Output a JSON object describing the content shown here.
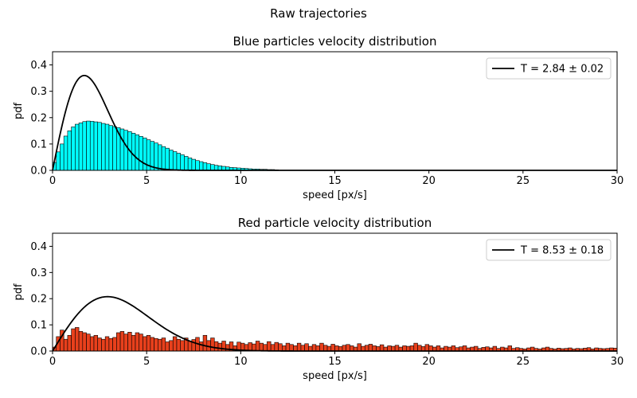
{
  "figure": {
    "suptitle": "Raw trajectories"
  },
  "chart_data": [
    {
      "type": "bar",
      "title": "Blue particles velocity distribution",
      "xlabel": "speed [px/s]",
      "ylabel": "pdf",
      "xlim": [
        0,
        30
      ],
      "ylim": [
        0,
        0.45
      ],
      "xticks": [
        "0",
        "5",
        "10",
        "15",
        "20",
        "25",
        "30"
      ],
      "yticks": [
        "0.0",
        "0.1",
        "0.2",
        "0.3",
        "0.4"
      ],
      "bin_width": 0.2,
      "bar_color": "#00ffff",
      "edge_color": "#000000",
      "values": [
        0.03,
        0.07,
        0.1,
        0.13,
        0.15,
        0.165,
        0.175,
        0.18,
        0.185,
        0.187,
        0.186,
        0.184,
        0.182,
        0.178,
        0.175,
        0.17,
        0.166,
        0.162,
        0.157,
        0.152,
        0.147,
        0.141,
        0.135,
        0.129,
        0.123,
        0.116,
        0.11,
        0.104,
        0.097,
        0.09,
        0.084,
        0.077,
        0.071,
        0.065,
        0.059,
        0.053,
        0.047,
        0.042,
        0.037,
        0.033,
        0.029,
        0.025,
        0.022,
        0.019,
        0.017,
        0.015,
        0.013,
        0.011,
        0.01,
        0.009,
        0.008,
        0.007,
        0.006,
        0.005,
        0.005,
        0.004,
        0.004,
        0.003,
        0.003,
        0.002
      ],
      "fit_curve": {
        "type": "maxwell-2d",
        "T": 2.84,
        "color": "#000000"
      },
      "legend": {
        "label": "T = 2.84 ± 0.02",
        "position": "top-right"
      },
      "grid": false
    },
    {
      "type": "bar",
      "title": "Red particle velocity distribution",
      "xlabel": "speed [px/s]",
      "ylabel": "pdf",
      "xlim": [
        0,
        30
      ],
      "ylim": [
        0,
        0.45
      ],
      "xticks": [
        "0",
        "5",
        "10",
        "15",
        "20",
        "25",
        "30"
      ],
      "yticks": [
        "0.0",
        "0.1",
        "0.2",
        "0.3",
        "0.4"
      ],
      "bin_width": 0.2,
      "bar_color": "#e8401c",
      "edge_color": "#000000",
      "values": [
        0.015,
        0.055,
        0.08,
        0.045,
        0.06,
        0.085,
        0.09,
        0.075,
        0.07,
        0.065,
        0.055,
        0.06,
        0.05,
        0.045,
        0.055,
        0.048,
        0.052,
        0.07,
        0.075,
        0.065,
        0.072,
        0.06,
        0.07,
        0.065,
        0.055,
        0.06,
        0.052,
        0.048,
        0.045,
        0.05,
        0.035,
        0.04,
        0.055,
        0.045,
        0.04,
        0.05,
        0.038,
        0.044,
        0.052,
        0.035,
        0.06,
        0.04,
        0.05,
        0.036,
        0.03,
        0.038,
        0.025,
        0.035,
        0.02,
        0.034,
        0.03,
        0.025,
        0.032,
        0.027,
        0.038,
        0.03,
        0.025,
        0.036,
        0.025,
        0.033,
        0.028,
        0.02,
        0.03,
        0.025,
        0.02,
        0.03,
        0.022,
        0.028,
        0.018,
        0.025,
        0.02,
        0.03,
        0.022,
        0.018,
        0.026,
        0.02,
        0.017,
        0.022,
        0.025,
        0.02,
        0.015,
        0.028,
        0.018,
        0.022,
        0.026,
        0.02,
        0.017,
        0.024,
        0.015,
        0.02,
        0.018,
        0.022,
        0.015,
        0.02,
        0.018,
        0.02,
        0.03,
        0.022,
        0.017,
        0.025,
        0.02,
        0.015,
        0.02,
        0.012,
        0.018,
        0.015,
        0.02,
        0.013,
        0.016,
        0.02,
        0.012,
        0.015,
        0.018,
        0.01,
        0.014,
        0.016,
        0.012,
        0.018,
        0.01,
        0.015,
        0.012,
        0.02,
        0.01,
        0.013,
        0.01,
        0.008,
        0.012,
        0.015,
        0.01,
        0.008,
        0.012,
        0.015,
        0.01,
        0.008,
        0.011,
        0.009,
        0.01,
        0.012,
        0.008,
        0.01,
        0.009,
        0.011,
        0.013,
        0.008,
        0.012,
        0.01,
        0.009,
        0.01,
        0.012,
        0.011
      ],
      "fit_curve": {
        "type": "maxwell-2d",
        "T": 8.53,
        "color": "#000000"
      },
      "legend": {
        "label": "T = 8.53 ± 0.18",
        "position": "top-right"
      },
      "grid": false
    }
  ]
}
